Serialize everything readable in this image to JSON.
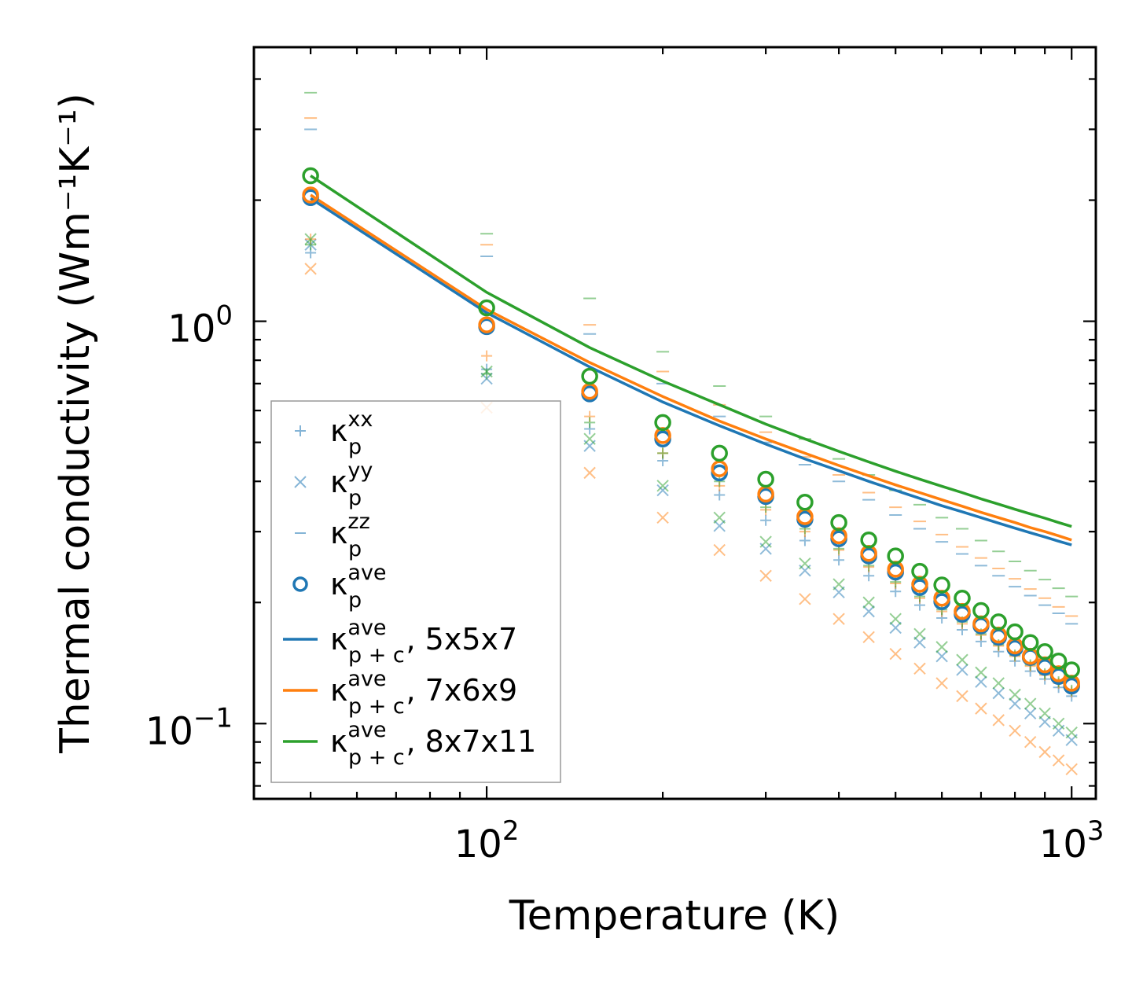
{
  "chart_data": {
    "type": "scatter",
    "xscale": "log",
    "yscale": "log",
    "xlabel": "Temperature (K)",
    "ylabel": "Thermal conductivity (Wm⁻¹K⁻¹)",
    "xlim": [
      40,
      1100
    ],
    "ylim": [
      0.065,
      4.8
    ],
    "xticks": [
      {
        "value": 100,
        "base": "10",
        "exp": "2"
      },
      {
        "value": 1000,
        "base": "10",
        "exp": "3"
      }
    ],
    "yticks": [
      {
        "value": 0.1,
        "base": "10",
        "exp": "−1"
      },
      {
        "value": 1,
        "base": "10",
        "exp": "0"
      }
    ],
    "legend_position": "lower-left",
    "colors": {
      "5x5x7": "#1f77b4",
      "7x6x9": "#ff7f0e",
      "8x7x11": "#2ca02c"
    },
    "x": [
      50,
      100,
      150,
      200,
      250,
      300,
      350,
      400,
      450,
      500,
      550,
      600,
      650,
      700,
      750,
      800,
      850,
      900,
      950,
      1000
    ],
    "grids": [
      {
        "name": "5x5x7",
        "color": "#1f77b4",
        "kxx": [
          1.48,
          0.76,
          0.54,
          0.45,
          0.37,
          0.32,
          0.285,
          0.255,
          0.233,
          0.213,
          0.197,
          0.183,
          0.171,
          0.16,
          0.151,
          0.143,
          0.135,
          0.129,
          0.123,
          0.117
        ],
        "kyy": [
          1.55,
          0.72,
          0.49,
          0.38,
          0.31,
          0.272,
          0.24,
          0.212,
          0.19,
          0.173,
          0.159,
          0.147,
          0.136,
          0.127,
          0.119,
          0.112,
          0.106,
          0.101,
          0.096,
          0.091
        ],
        "kzz": [
          3.0,
          1.45,
          0.93,
          0.7,
          0.58,
          0.5,
          0.44,
          0.4,
          0.36,
          0.33,
          0.305,
          0.283,
          0.264,
          0.247,
          0.233,
          0.219,
          0.208,
          0.197,
          0.188,
          0.177
        ],
        "kave": [
          2.03,
          0.97,
          0.66,
          0.51,
          0.42,
          0.367,
          0.322,
          0.288,
          0.261,
          0.238,
          0.218,
          0.201,
          0.187,
          0.175,
          0.164,
          0.154,
          0.146,
          0.138,
          0.131,
          0.124
        ],
        "kpc": [
          2.02,
          1.05,
          0.77,
          0.63,
          0.55,
          0.495,
          0.455,
          0.425,
          0.4,
          0.38,
          0.363,
          0.348,
          0.336,
          0.325,
          0.315,
          0.306,
          0.298,
          0.291,
          0.284,
          0.278
        ]
      },
      {
        "name": "7x6x9",
        "color": "#ff7f0e",
        "kxx": [
          1.6,
          0.82,
          0.58,
          0.47,
          0.39,
          0.34,
          0.3,
          0.27,
          0.245,
          0.223,
          0.205,
          0.19,
          0.177,
          0.166,
          0.156,
          0.147,
          0.139,
          0.132,
          0.126,
          0.12
        ],
        "kyy": [
          1.35,
          0.61,
          0.42,
          0.325,
          0.27,
          0.233,
          0.204,
          0.182,
          0.164,
          0.149,
          0.137,
          0.126,
          0.117,
          0.109,
          0.102,
          0.096,
          0.09,
          0.085,
          0.081,
          0.077
        ],
        "kzz": [
          3.2,
          1.55,
          0.98,
          0.75,
          0.62,
          0.53,
          0.46,
          0.415,
          0.375,
          0.345,
          0.318,
          0.295,
          0.275,
          0.258,
          0.243,
          0.229,
          0.216,
          0.205,
          0.195,
          0.185
        ],
        "kave": [
          2.06,
          0.98,
          0.67,
          0.52,
          0.43,
          0.372,
          0.327,
          0.293,
          0.265,
          0.242,
          0.222,
          0.205,
          0.19,
          0.177,
          0.166,
          0.156,
          0.147,
          0.14,
          0.133,
          0.126
        ],
        "kpc": [
          2.06,
          1.07,
          0.79,
          0.65,
          0.565,
          0.51,
          0.47,
          0.438,
          0.413,
          0.392,
          0.375,
          0.36,
          0.347,
          0.335,
          0.325,
          0.316,
          0.307,
          0.3,
          0.293,
          0.286
        ]
      },
      {
        "name": "8x7x11",
        "color": "#2ca02c",
        "kxx": [
          1.55,
          0.74,
          0.56,
          0.47,
          0.4,
          0.345,
          0.305,
          0.272,
          0.247,
          0.225,
          0.207,
          0.192,
          0.179,
          0.167,
          0.157,
          0.148,
          0.14,
          0.133,
          0.127,
          0.121
        ],
        "kyy": [
          1.6,
          0.75,
          0.51,
          0.39,
          0.325,
          0.283,
          0.25,
          0.222,
          0.2,
          0.182,
          0.167,
          0.155,
          0.144,
          0.134,
          0.126,
          0.118,
          0.112,
          0.106,
          0.1,
          0.095
        ],
        "kzz": [
          3.7,
          1.65,
          1.14,
          0.84,
          0.69,
          0.58,
          0.51,
          0.455,
          0.415,
          0.38,
          0.35,
          0.325,
          0.305,
          0.285,
          0.268,
          0.253,
          0.24,
          0.228,
          0.217,
          0.207
        ],
        "kave": [
          2.3,
          1.08,
          0.73,
          0.56,
          0.47,
          0.405,
          0.355,
          0.316,
          0.286,
          0.261,
          0.239,
          0.221,
          0.205,
          0.191,
          0.179,
          0.169,
          0.159,
          0.151,
          0.143,
          0.136
        ],
        "kpc": [
          2.3,
          1.18,
          0.86,
          0.71,
          0.62,
          0.555,
          0.51,
          0.475,
          0.447,
          0.424,
          0.405,
          0.389,
          0.375,
          0.362,
          0.351,
          0.341,
          0.332,
          0.324,
          0.316,
          0.309
        ]
      }
    ],
    "legend": [
      {
        "kind": "plus",
        "sup": "xx",
        "sub": "p",
        "suffix": ""
      },
      {
        "kind": "cross",
        "sup": "yy",
        "sub": "p",
        "suffix": ""
      },
      {
        "kind": "dash",
        "sup": "zz",
        "sub": "p",
        "suffix": ""
      },
      {
        "kind": "circle",
        "sup": "ave",
        "sub": "p",
        "suffix": ""
      },
      {
        "kind": "line",
        "sup": "ave",
        "sub": "p + c",
        "suffix": ", 5x5x7",
        "grid": 0
      },
      {
        "kind": "line",
        "sup": "ave",
        "sub": "p + c",
        "suffix": ", 7x6x9",
        "grid": 1
      },
      {
        "kind": "line",
        "sup": "ave",
        "sub": "p + c",
        "suffix": ", 8x7x11",
        "grid": 2
      }
    ],
    "legend_symbol": "κ"
  }
}
